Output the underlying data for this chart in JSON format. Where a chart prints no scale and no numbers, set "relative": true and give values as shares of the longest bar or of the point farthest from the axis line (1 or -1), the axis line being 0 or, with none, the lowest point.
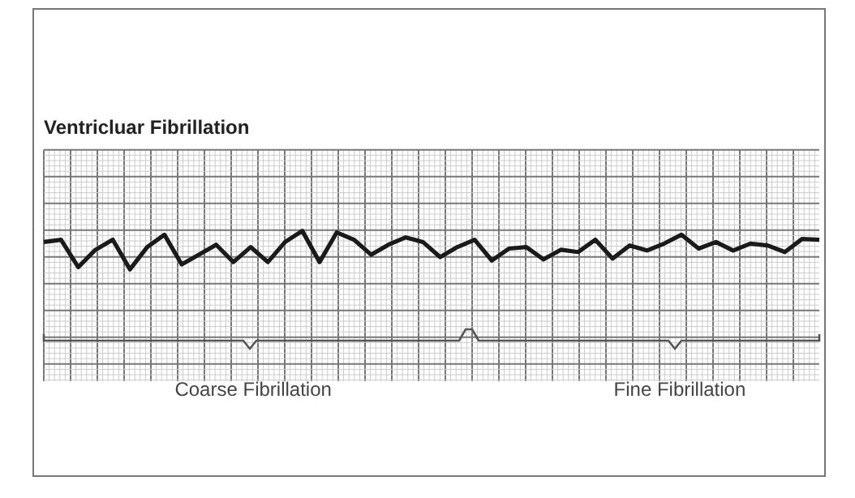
{
  "chart_data": {
    "type": "line",
    "title": "Ventricluar Fibrillation",
    "relative": true,
    "grid": true,
    "marker": "none",
    "line_style": "solid",
    "legend": false,
    "categories": [
      null,
      null,
      null,
      null,
      null,
      null,
      null,
      null,
      null,
      null,
      null,
      null,
      null,
      null,
      null,
      null,
      null,
      null,
      null,
      null,
      null,
      null,
      null,
      null,
      null,
      null,
      null,
      null,
      null,
      null,
      null,
      null,
      null,
      null,
      null,
      null,
      null,
      null,
      null,
      null,
      null,
      null,
      null,
      null,
      null,
      null
    ],
    "series": [
      {
        "color": "#1a1a1a",
        "values": [
          0.71,
          0.77,
          0.06,
          0.51,
          0.77,
          0,
          0.58,
          0.9,
          0.13,
          0.38,
          0.64,
          0.19,
          0.58,
          0.19,
          0.71,
          1,
          0.19,
          0.96,
          0.77,
          0.38,
          0.64,
          0.83,
          0.71,
          0.32,
          0.58,
          0.77,
          0.23,
          0.54,
          0.58,
          0.26,
          0.51,
          0.45,
          0.77,
          0.28,
          0.62,
          0.49,
          0.67,
          0.9,
          0.54,
          0.71,
          0.49,
          0.67,
          0.62,
          0.45,
          0.79,
          0.77
        ]
      }
    ],
    "annotations": [
      "Coarse Fibrillation",
      "Fine Fibrillation"
    ]
  }
}
